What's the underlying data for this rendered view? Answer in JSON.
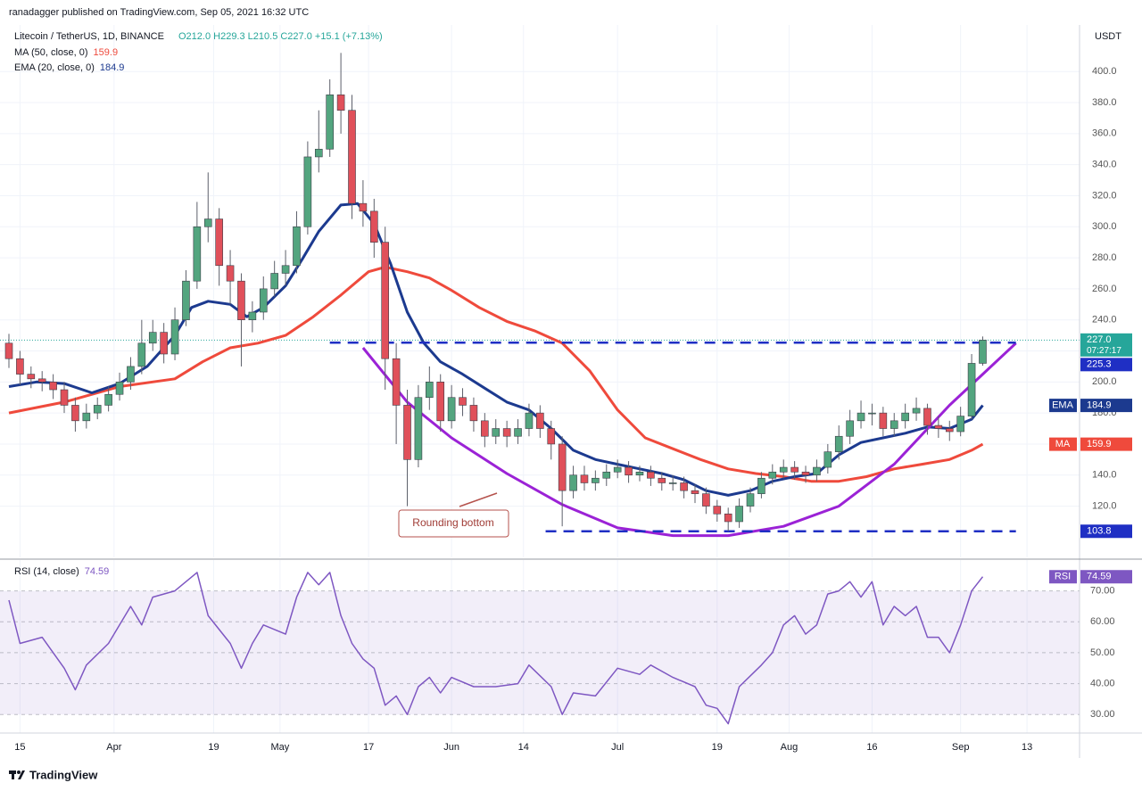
{
  "header": {
    "published": "ranadagger published on TradingView.com, Sep 05, 2021 16:32 UTC"
  },
  "chart_data": {
    "type": "candlestick",
    "title": "Litecoin / TetherUS, 1D, BINANCE",
    "ohlc_text": "O212.0 H229.3 L210.5 C227.0 +15.1 (+7.13%)",
    "currency": "USDT",
    "x": [
      0,
      2,
      4,
      6,
      8,
      10,
      12,
      14,
      16,
      18,
      20,
      22,
      24,
      26,
      28,
      30,
      32,
      34,
      36,
      38,
      40,
      42,
      44,
      46,
      48,
      50,
      52,
      54,
      56,
      58,
      60,
      62,
      64,
      66,
      68,
      70,
      72,
      74,
      76,
      78,
      80,
      82,
      84,
      86,
      88,
      90,
      92,
      94,
      96,
      98,
      100,
      102,
      104,
      106,
      108,
      110,
      112,
      114,
      116,
      118,
      120,
      122,
      124,
      126,
      128,
      130,
      132,
      134,
      136,
      138,
      140,
      142,
      144,
      146,
      148,
      150,
      152,
      154,
      156,
      158,
      160,
      162,
      164,
      166,
      168,
      170,
      172,
      174,
      176
    ],
    "open": [
      225,
      215,
      205,
      202,
      200,
      195,
      185,
      175,
      180,
      185,
      192,
      200,
      210,
      225,
      232,
      218,
      240,
      265,
      300,
      305,
      275,
      265,
      240,
      245,
      260,
      270,
      275,
      300,
      345,
      350,
      385,
      375,
      315,
      310,
      290,
      215,
      185,
      150,
      190,
      200,
      175,
      190,
      185,
      175,
      165,
      170,
      165,
      170,
      180,
      170,
      160,
      130,
      140,
      135,
      138,
      142,
      145,
      140,
      142,
      138,
      135,
      135,
      130,
      128,
      120,
      115,
      110,
      120,
      128,
      138,
      142,
      145,
      142,
      140,
      145,
      155,
      165,
      175,
      180,
      180,
      170,
      175,
      180,
      183,
      172,
      170,
      168,
      178,
      212
    ],
    "high": [
      231,
      220,
      210,
      207,
      205,
      200,
      190,
      186,
      190,
      197,
      206,
      216,
      240,
      240,
      238,
      248,
      272,
      316,
      335,
      312,
      285,
      270,
      252,
      268,
      278,
      285,
      310,
      355,
      375,
      395,
      412,
      385,
      330,
      318,
      300,
      225,
      195,
      198,
      210,
      205,
      198,
      196,
      190,
      180,
      176,
      175,
      176,
      186,
      185,
      175,
      165,
      146,
      146,
      143,
      147,
      150,
      149,
      146,
      146,
      142,
      140,
      139,
      134,
      132,
      124,
      119,
      125,
      132,
      142,
      147,
      150,
      149,
      146,
      150,
      160,
      172,
      182,
      188,
      186,
      184,
      180,
      186,
      190,
      186,
      178,
      175,
      184,
      218,
      229.3
    ],
    "low": [
      209,
      198,
      196,
      194,
      189,
      180,
      168,
      170,
      176,
      181,
      188,
      195,
      205,
      220,
      212,
      214,
      236,
      260,
      290,
      262,
      250,
      210,
      232,
      240,
      255,
      262,
      270,
      295,
      335,
      345,
      360,
      305,
      300,
      280,
      195,
      160,
      120,
      145,
      182,
      168,
      170,
      178,
      168,
      158,
      160,
      158,
      160,
      165,
      164,
      150,
      107,
      125,
      130,
      130,
      133,
      138,
      135,
      136,
      133,
      130,
      130,
      125,
      122,
      115,
      110,
      103.8,
      106,
      116,
      125,
      134,
      138,
      137,
      135,
      136,
      141,
      150,
      160,
      170,
      172,
      165,
      165,
      170,
      175,
      166,
      164,
      162,
      165,
      176,
      210.5
    ],
    "close": [
      215,
      205,
      202,
      200,
      195,
      185,
      175,
      180,
      185,
      192,
      200,
      210,
      225,
      232,
      218,
      240,
      265,
      300,
      305,
      275,
      265,
      240,
      245,
      260,
      270,
      275,
      300,
      345,
      350,
      385,
      375,
      315,
      310,
      290,
      215,
      185,
      150,
      190,
      200,
      175,
      190,
      185,
      175,
      165,
      170,
      165,
      170,
      180,
      170,
      160,
      130,
      140,
      135,
      138,
      142,
      145,
      140,
      142,
      138,
      135,
      135,
      130,
      128,
      120,
      115,
      110,
      120,
      128,
      138,
      142,
      145,
      142,
      140,
      145,
      155,
      165,
      175,
      180,
      180,
      170,
      175,
      180,
      183,
      172,
      170,
      168,
      178,
      212,
      227
    ],
    "up_color": "#53a57f",
    "down_color": "#e0505a",
    "xlim": [
      0,
      193.5
    ],
    "xticks": [
      {
        "value": 2,
        "label": "15"
      },
      {
        "value": 19,
        "label": "Apr"
      },
      {
        "value": 37,
        "label": "19"
      },
      {
        "value": 49,
        "label": "May"
      },
      {
        "value": 65,
        "label": "17"
      },
      {
        "value": 80,
        "label": "Jun"
      },
      {
        "value": 93,
        "label": "14"
      },
      {
        "value": 110,
        "label": "Jul"
      },
      {
        "value": 128,
        "label": "19"
      },
      {
        "value": 141,
        "label": "Aug"
      },
      {
        "value": 156,
        "label": "16"
      },
      {
        "value": 172,
        "label": "Sep"
      },
      {
        "value": 184,
        "label": "13"
      }
    ],
    "ylim": [
      87,
      430
    ],
    "yticks": [
      {
        "value": 120,
        "label": "120.0"
      },
      {
        "value": 140,
        "label": "140.0"
      },
      {
        "value": 160,
        "label": "160.0"
      },
      {
        "value": 180,
        "label": "180.0"
      },
      {
        "value": 200,
        "label": "200.0"
      },
      {
        "value": 220,
        "label": "220.0"
      },
      {
        "value": 240,
        "label": "240.0"
      },
      {
        "value": 260,
        "label": "260.0"
      },
      {
        "value": 280,
        "label": "280.0"
      },
      {
        "value": 300,
        "label": "300.0"
      },
      {
        "value": 320,
        "label": "320.0"
      },
      {
        "value": 340,
        "label": "340.0"
      },
      {
        "value": 360,
        "label": "360.0"
      },
      {
        "value": 380,
        "label": "380.0"
      },
      {
        "value": 400,
        "label": "400.0"
      }
    ],
    "grid": true,
    "lines": [
      {
        "name": "MA (50, close, 0)",
        "tag": "MA",
        "last": 159.9,
        "color": "#ef4a3c",
        "x": [
          0,
          10,
          20,
          30,
          35,
          40,
          45,
          50,
          55,
          60,
          65,
          68,
          72,
          76,
          80,
          85,
          90,
          95,
          100,
          105,
          110,
          115,
          120,
          125,
          130,
          135,
          140,
          145,
          150,
          155,
          160,
          165,
          170,
          174,
          176
        ],
        "values": [
          180,
          187,
          197,
          202,
          213,
          222,
          225,
          230,
          242,
          256,
          271,
          274,
          271,
          267,
          259,
          248,
          239,
          233,
          225,
          207,
          182,
          164,
          157,
          150,
          144,
          141,
          139,
          136,
          136,
          139,
          144,
          147,
          150,
          156,
          159.9
        ]
      },
      {
        "name": "EMA (20, close, 0)",
        "tag": "EMA",
        "last": 184.9,
        "color": "#1c3a8f",
        "x": [
          0,
          5,
          10,
          15,
          20,
          25,
          30,
          33,
          36,
          40,
          43,
          46,
          50,
          53,
          56,
          60,
          63,
          66,
          69,
          72,
          75,
          78,
          82,
          86,
          90,
          94,
          98,
          102,
          106,
          110,
          114,
          118,
          122,
          126,
          130,
          134,
          138,
          142,
          146,
          150,
          154,
          158,
          162,
          166,
          170,
          174,
          176
        ],
        "values": [
          197,
          200,
          199,
          193,
          199,
          210,
          230,
          248,
          252,
          250,
          242,
          248,
          262,
          279,
          297,
          314,
          315,
          302,
          276,
          245,
          225,
          213,
          205,
          196,
          187,
          182,
          170,
          156,
          150,
          147,
          144,
          141,
          137,
          130,
          127,
          130,
          136,
          139,
          141,
          153,
          161,
          164,
          167,
          171,
          170,
          176,
          184.9
        ]
      }
    ],
    "levels": [
      {
        "value": 225.3,
        "x": [
          58,
          182
        ],
        "color": "#1f2fc4"
      },
      {
        "value": 103.8,
        "x": [
          97,
          182
        ],
        "color": "#1f2fc4"
      }
    ],
    "last_price": {
      "value": 227,
      "label": "227.0",
      "countdown": "07:27:17"
    },
    "annotation": {
      "text": "Rounding bottom",
      "color": "#9b22d6",
      "x": [
        64,
        72,
        80,
        90,
        100,
        110,
        120,
        130,
        140,
        150,
        160,
        170,
        176,
        182
      ],
      "values": [
        222,
        187,
        164,
        141,
        121,
        106,
        101,
        101,
        107,
        120,
        147,
        185,
        205,
        225
      ]
    },
    "rsi": {
      "name": "RSI (14, close)",
      "tag": "RSI",
      "last": 74.59,
      "color": "#7e57c2",
      "x": [
        0,
        2,
        6,
        10,
        12,
        14,
        18,
        22,
        24,
        26,
        30,
        34,
        36,
        40,
        42,
        44,
        46,
        50,
        52,
        54,
        56,
        58,
        60,
        62,
        64,
        66,
        68,
        70,
        72,
        74,
        76,
        78,
        80,
        84,
        88,
        92,
        94,
        98,
        100,
        102,
        106,
        110,
        114,
        116,
        120,
        124,
        126,
        128,
        130,
        132,
        136,
        138,
        140,
        142,
        144,
        146,
        148,
        150,
        152,
        154,
        156,
        158,
        160,
        162,
        164,
        166,
        168,
        170,
        172,
        174,
        176
      ],
      "values": [
        67,
        53,
        55,
        45,
        38,
        46,
        53,
        65,
        59,
        68,
        70,
        76,
        62,
        53,
        45,
        53,
        59,
        56,
        68,
        76,
        72,
        76,
        62,
        53,
        48,
        45,
        33,
        36,
        30,
        39,
        42,
        37,
        42,
        39,
        39,
        40,
        46,
        39,
        30,
        37,
        36,
        45,
        43,
        46,
        42,
        39,
        33,
        32,
        27,
        39,
        46,
        50,
        59,
        62,
        56,
        59,
        69,
        70,
        73,
        68,
        73,
        59,
        65,
        62,
        65,
        55,
        55,
        50,
        59,
        70,
        74.59
      ],
      "ylim": [
        24,
        80
      ],
      "yticks": [
        {
          "value": 30,
          "label": "30.00"
        },
        {
          "value": 40,
          "label": "40.00"
        },
        {
          "value": 50,
          "label": "50.00"
        },
        {
          "value": 60,
          "label": "60.00"
        },
        {
          "value": 70,
          "label": "70.00"
        }
      ],
      "band": [
        30,
        70
      ]
    }
  },
  "footer": {
    "brand": "TradingView"
  }
}
